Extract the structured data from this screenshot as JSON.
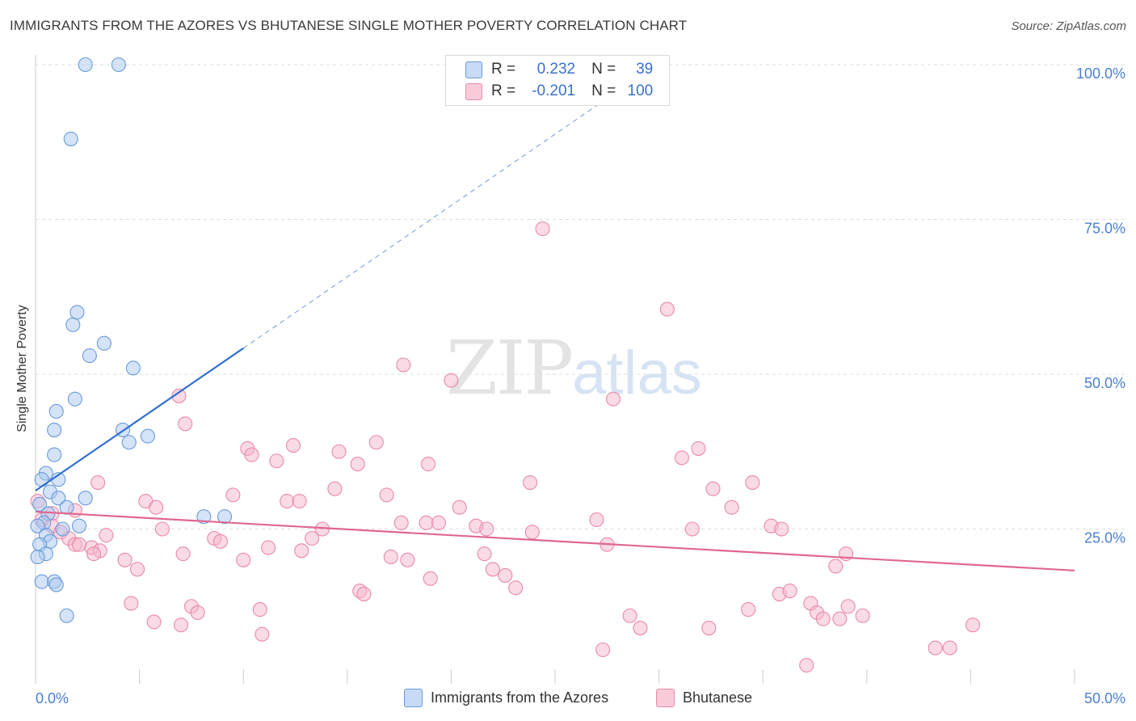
{
  "title": "IMMIGRANTS FROM THE AZORES VS BHUTANESE SINGLE MOTHER POVERTY CORRELATION CHART",
  "source": "Source: ZipAtlas.com",
  "watermark": {
    "zip": "ZIP",
    "atlas": "atlas"
  },
  "legend": {
    "rows": [
      {
        "r_label": "R =",
        "r_value": "0.232",
        "n_label": "N =",
        "n_value": "39",
        "color": "#a9c8f2"
      },
      {
        "r_label": "R =",
        "r_value": "-0.201",
        "n_label": "N =",
        "n_value": "100",
        "color": "#f6b6c9"
      }
    ]
  },
  "bottom_legend": {
    "azores": "Immigrants from the Azores",
    "bhutanese": "Bhutanese"
  },
  "colors": {
    "azores_fill": "#a9c8f2",
    "azores_stroke": "#6a9bd8",
    "azores_line": "#2f6fd1",
    "bhutanese_fill": "#f6b6c9",
    "bhutanese_stroke": "#e98aa8",
    "bhutanese_line": "#e0678f",
    "tick_label": "#4a7fd0",
    "grid": "#dddddd"
  },
  "chart_data": {
    "type": "scatter",
    "title": "IMMIGRANTS FROM THE AZORES VS BHUTANESE SINGLE MOTHER POVERTY CORRELATION CHART",
    "xlabel": "",
    "ylabel": "Single Mother Poverty",
    "xlim": [
      0,
      50
    ],
    "ylim": [
      0,
      100
    ],
    "x_tick_labels": [
      "0.0%",
      "50.0%"
    ],
    "y_ticks": [
      25,
      50,
      75,
      100
    ],
    "y_tick_labels": [
      "25.0%",
      "50.0%",
      "75.0%",
      "100.0%"
    ],
    "grid": true,
    "series": [
      {
        "name": "Immigrants from the Azores",
        "R": 0.232,
        "N": 39,
        "trend": {
          "x0": 0,
          "y0": 31.2,
          "x1": 10,
          "y1": 54.2,
          "dashed_to": {
            "x": 29,
            "y": 98
          }
        },
        "points": [
          [
            2.4,
            100
          ],
          [
            4.0,
            100
          ],
          [
            1.7,
            88
          ],
          [
            1.8,
            58
          ],
          [
            2.0,
            60
          ],
          [
            3.3,
            55
          ],
          [
            2.6,
            53
          ],
          [
            4.7,
            51
          ],
          [
            1.9,
            46
          ],
          [
            1.0,
            44
          ],
          [
            0.9,
            41
          ],
          [
            4.2,
            41
          ],
          [
            5.4,
            40
          ],
          [
            4.5,
            39
          ],
          [
            0.9,
            37
          ],
          [
            0.5,
            34
          ],
          [
            0.3,
            33
          ],
          [
            1.1,
            33
          ],
          [
            0.7,
            31
          ],
          [
            1.1,
            30
          ],
          [
            2.4,
            30
          ],
          [
            0.2,
            29
          ],
          [
            1.5,
            28.5
          ],
          [
            0.6,
            27.5
          ],
          [
            8.1,
            27
          ],
          [
            9.1,
            27
          ],
          [
            0.4,
            26
          ],
          [
            0.1,
            25.5
          ],
          [
            1.3,
            25
          ],
          [
            2.1,
            25.5
          ],
          [
            0.5,
            24
          ],
          [
            0.7,
            23
          ],
          [
            0.2,
            22.5
          ],
          [
            0.5,
            21
          ],
          [
            0.1,
            20.5
          ],
          [
            0.3,
            16.5
          ],
          [
            0.9,
            16.5
          ],
          [
            1.0,
            16
          ],
          [
            1.5,
            11
          ]
        ]
      },
      {
        "name": "Bhutanese",
        "R": -0.201,
        "N": 100,
        "trend": {
          "x0": 0,
          "y0": 27.8,
          "x1": 50,
          "y1": 18.3
        },
        "points": [
          [
            24.4,
            73.5
          ],
          [
            30.4,
            60.5
          ],
          [
            17.7,
            51.5
          ],
          [
            20.0,
            49
          ],
          [
            27.8,
            46
          ],
          [
            6.9,
            46.5
          ],
          [
            7.2,
            42
          ],
          [
            10.2,
            38
          ],
          [
            12.4,
            38.5
          ],
          [
            10.4,
            37
          ],
          [
            16.4,
            39
          ],
          [
            14.6,
            37.5
          ],
          [
            11.6,
            36
          ],
          [
            15.5,
            35.5
          ],
          [
            18.9,
            35.5
          ],
          [
            31.1,
            36.5
          ],
          [
            31.9,
            38
          ],
          [
            3.0,
            32.5
          ],
          [
            14.4,
            31.5
          ],
          [
            23.8,
            32.5
          ],
          [
            32.6,
            31.5
          ],
          [
            34.5,
            32.5
          ],
          [
            9.5,
            30.5
          ],
          [
            12.1,
            29.5
          ],
          [
            12.7,
            29.5
          ],
          [
            16.9,
            30.5
          ],
          [
            5.3,
            29.5
          ],
          [
            5.8,
            28.5
          ],
          [
            20.4,
            28.5
          ],
          [
            33.5,
            28.5
          ],
          [
            1.9,
            28
          ],
          [
            0.1,
            29.5
          ],
          [
            0.8,
            27.5
          ],
          [
            0.3,
            26.5
          ],
          [
            0.8,
            25.5
          ],
          [
            1.2,
            24.5
          ],
          [
            27.0,
            26.5
          ],
          [
            35.4,
            25.5
          ],
          [
            35.9,
            25
          ],
          [
            17.6,
            26
          ],
          [
            18.8,
            26
          ],
          [
            19.4,
            26
          ],
          [
            21.2,
            25.5
          ],
          [
            21.7,
            25
          ],
          [
            13.8,
            25
          ],
          [
            6.1,
            25
          ],
          [
            23.9,
            24.5
          ],
          [
            31.6,
            25
          ],
          [
            3.4,
            24
          ],
          [
            1.6,
            23.5
          ],
          [
            8.6,
            23.5
          ],
          [
            8.9,
            23
          ],
          [
            13.3,
            23.5
          ],
          [
            1.9,
            22.5
          ],
          [
            2.1,
            22.5
          ],
          [
            2.7,
            22
          ],
          [
            3.1,
            21.5
          ],
          [
            2.8,
            21
          ],
          [
            7.1,
            21
          ],
          [
            11.2,
            22
          ],
          [
            12.8,
            21.5
          ],
          [
            17.1,
            20.5
          ],
          [
            17.9,
            20
          ],
          [
            21.6,
            21
          ],
          [
            27.5,
            22.5
          ],
          [
            10.0,
            20
          ],
          [
            4.3,
            20
          ],
          [
            4.9,
            18.5
          ],
          [
            22.0,
            18.5
          ],
          [
            22.6,
            17.5
          ],
          [
            19.0,
            17
          ],
          [
            23.1,
            15.5
          ],
          [
            15.6,
            15
          ],
          [
            15.8,
            14.5
          ],
          [
            35.8,
            14.5
          ],
          [
            36.3,
            15
          ],
          [
            37.3,
            13
          ],
          [
            4.6,
            13
          ],
          [
            7.5,
            12.5
          ],
          [
            7.8,
            11.5
          ],
          [
            10.8,
            12
          ],
          [
            34.3,
            12
          ],
          [
            37.6,
            11.5
          ],
          [
            39.1,
            12.5
          ],
          [
            28.6,
            11
          ],
          [
            29.1,
            9
          ],
          [
            32.4,
            9
          ],
          [
            37.9,
            10.5
          ],
          [
            38.7,
            10.5
          ],
          [
            39.8,
            11
          ],
          [
            5.7,
            10
          ],
          [
            45.1,
            9.5
          ],
          [
            10.9,
            8
          ],
          [
            27.3,
            5.5
          ],
          [
            43.3,
            5.8
          ],
          [
            37.1,
            3
          ],
          [
            38.5,
            19
          ],
          [
            39.0,
            21
          ],
          [
            7.0,
            9.5
          ],
          [
            44.0,
            5.8
          ]
        ]
      }
    ]
  }
}
